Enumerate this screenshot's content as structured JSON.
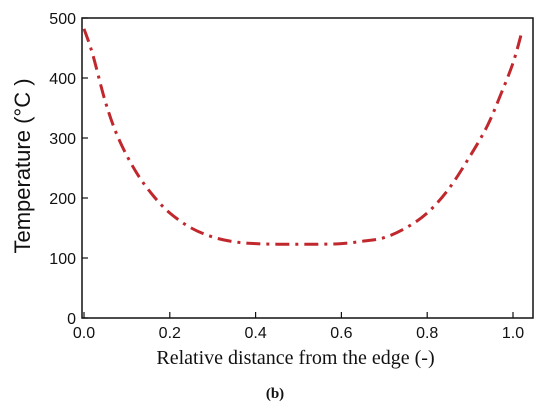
{
  "chart_data": {
    "type": "line",
    "title": "",
    "xlabel": "Relative distance from the edge",
    "xlabel_unit": "(-)",
    "ylabel": "Temperature",
    "ylabel_unit": "(°C )",
    "caption": "(b)",
    "xlim": [
      0.0,
      1.05
    ],
    "ylim": [
      0,
      500
    ],
    "xticks": [
      0.0,
      0.2,
      0.4,
      0.6,
      0.8,
      1.0
    ],
    "xtick_labels": [
      "0.0",
      "0.2",
      "0.4",
      "0.6",
      "0.8",
      "1.0"
    ],
    "yticks": [
      0,
      100,
      200,
      300,
      400,
      500
    ],
    "ytick_labels": [
      "0",
      "100",
      "200",
      "300",
      "400",
      "500"
    ],
    "grid": false,
    "legend": "none",
    "series": [
      {
        "color": "#c0282d",
        "line_style": "dash-dot",
        "x": [
          0.0,
          0.02,
          0.05,
          0.08,
          0.12,
          0.16,
          0.2,
          0.25,
          0.3,
          0.35,
          0.4,
          0.45,
          0.5,
          0.55,
          0.6,
          0.65,
          0.7,
          0.75,
          0.8,
          0.85,
          0.9,
          0.94,
          0.97,
          1.0,
          1.02
        ],
        "y": [
          482,
          440,
          360,
          300,
          245,
          205,
          175,
          150,
          135,
          127,
          124,
          123,
          123,
          123,
          124,
          128,
          134,
          150,
          175,
          215,
          270,
          320,
          370,
          425,
          475
        ]
      }
    ]
  }
}
